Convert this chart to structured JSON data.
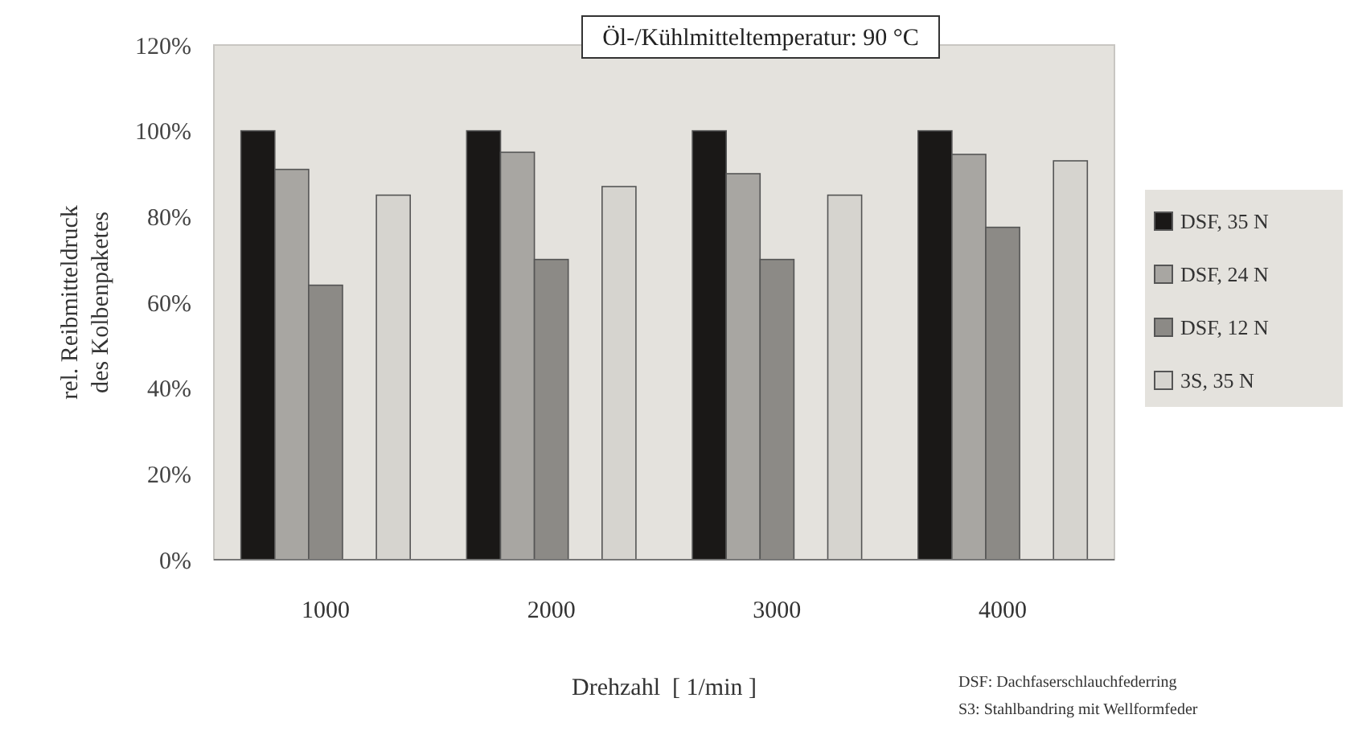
{
  "chart_data": {
    "type": "bar",
    "title": "Öl-/Kühlmitteltemperatur: 90 °C",
    "xlabel": "Drehzahl  [ 1/min ]",
    "ylabel": "rel. Reibmitteldruck\ndes Kolbenpaketes",
    "categories": [
      "1000",
      "2000",
      "3000",
      "4000"
    ],
    "series": [
      {
        "name": "DSF, 35 N",
        "color": "#1a1817",
        "values": [
          100,
          100,
          100,
          100
        ]
      },
      {
        "name": "DSF, 24 N",
        "color": "#a8a6a2",
        "values": [
          91,
          95,
          90,
          94.5
        ]
      },
      {
        "name": "DSF, 12 N",
        "color": "#8c8a86",
        "values": [
          64,
          70,
          70,
          77.5
        ]
      },
      {
        "name": "3S, 35 N",
        "color": "#d6d4cf",
        "values": [
          85,
          87,
          85,
          93
        ]
      }
    ],
    "ylim": [
      0,
      120
    ],
    "yticks": [
      {
        "value": 0,
        "label": "0%"
      },
      {
        "value": 20,
        "label": "20%"
      },
      {
        "value": 40,
        "label": "40%"
      },
      {
        "value": 60,
        "label": "60%"
      },
      {
        "value": 80,
        "label": "80%"
      },
      {
        "value": 100,
        "label": "100%"
      },
      {
        "value": 120,
        "label": "120%"
      }
    ],
    "grid": false,
    "legend": "right",
    "annotations": [
      "DSF: Dachfaserschlauchfederring",
      "S3: Stahlbandring mit Wellformfeder"
    ]
  }
}
